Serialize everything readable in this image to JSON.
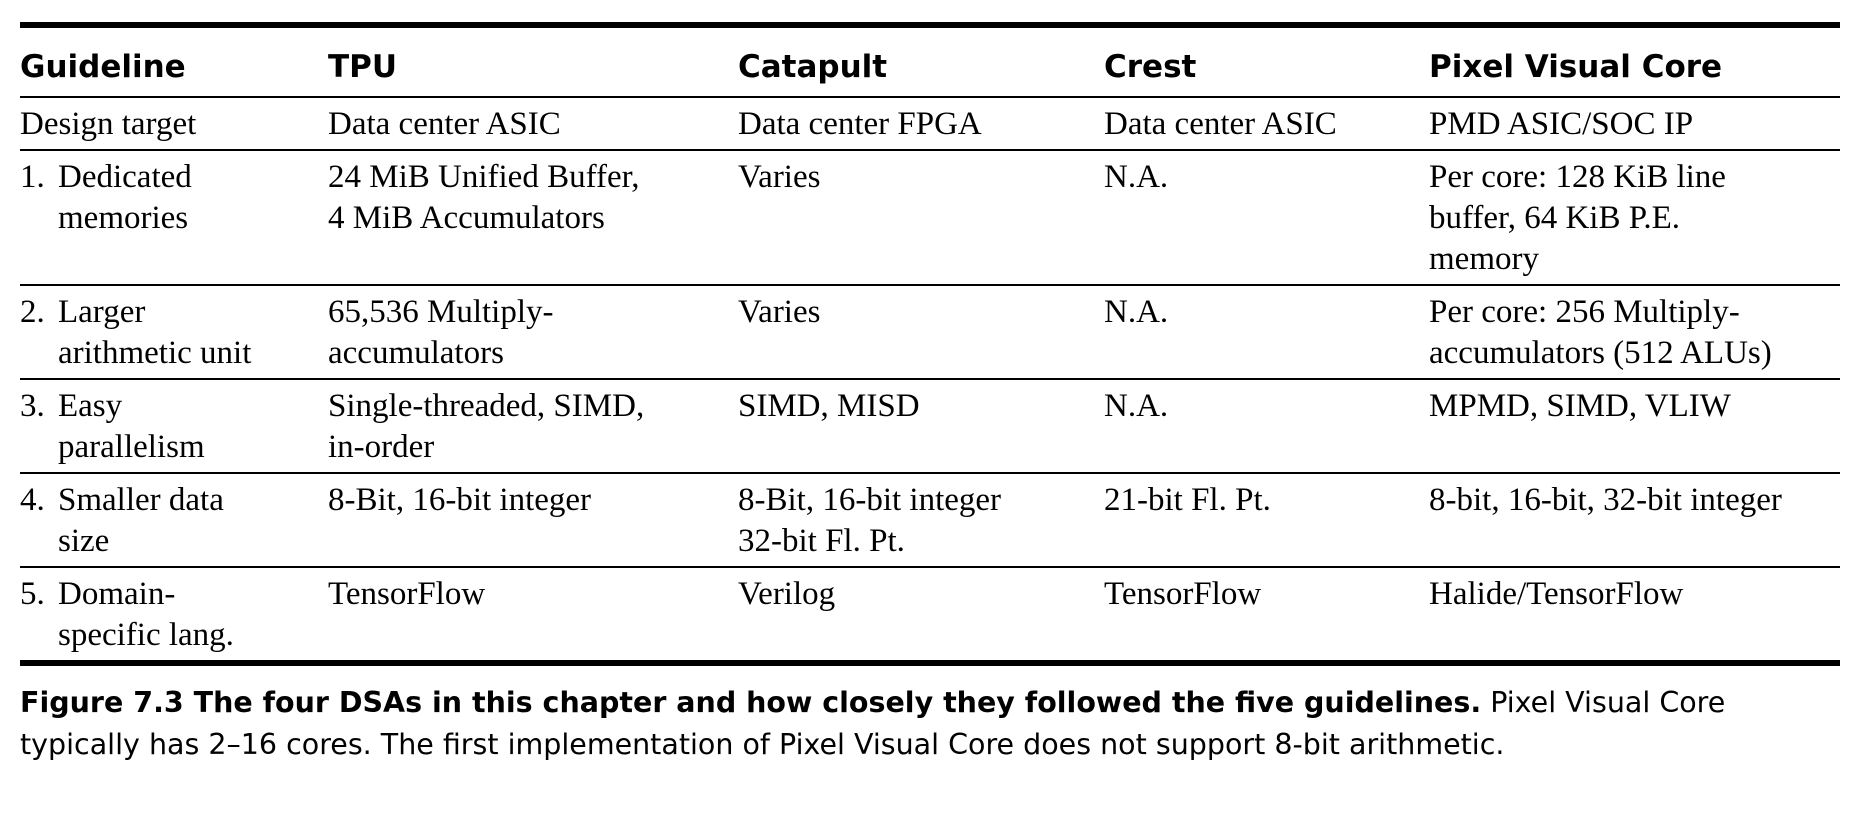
{
  "table": {
    "headers": [
      "Guideline",
      "TPU",
      "Catapult",
      "Crest",
      "Pixel Visual Core"
    ],
    "rows": [
      {
        "num": "",
        "guideline": [
          "Design target"
        ],
        "cells": [
          [
            "Data center ASIC"
          ],
          [
            "Data center FPGA"
          ],
          [
            "Data center ASIC"
          ],
          [
            "PMD ASIC/SOC IP"
          ]
        ]
      },
      {
        "num": "1.",
        "guideline": [
          "Dedicated",
          "memories"
        ],
        "cells": [
          [
            "24 MiB Unified Buffer,",
            "4 MiB  Accumulators"
          ],
          [
            "Varies"
          ],
          [
            "N.A."
          ],
          [
            "Per core: 128 KiB line",
            "buffer, 64 KiB P.E.",
            "memory"
          ]
        ]
      },
      {
        "num": "2.",
        "guideline": [
          "Larger",
          "arithmetic unit"
        ],
        "cells": [
          [
            "65,536 Multiply-",
            "accumulators"
          ],
          [
            "Varies"
          ],
          [
            "N.A."
          ],
          [
            "Per core: 256 Multiply-",
            "accumulators (512 ALUs)"
          ]
        ]
      },
      {
        "num": "3.",
        "guideline": [
          "Easy",
          "parallelism"
        ],
        "cells": [
          [
            "Single-threaded, SIMD,",
            "in-order"
          ],
          [
            "SIMD, MISD"
          ],
          [
            "N.A."
          ],
          [
            "MPMD, SIMD, VLIW"
          ]
        ]
      },
      {
        "num": "4.",
        "guideline": [
          "Smaller data",
          "size"
        ],
        "cells": [
          [
            "8-Bit, 16-bit integer"
          ],
          [
            "8-Bit, 16-bit integer",
            "32-bit Fl. Pt."
          ],
          [
            "21-bit Fl. Pt."
          ],
          [
            "8-bit, 16-bit, 32-bit integer"
          ]
        ]
      },
      {
        "num": "5.",
        "guideline": [
          "Domain-",
          "specific lang."
        ],
        "cells": [
          [
            "TensorFlow"
          ],
          [
            "Verilog"
          ],
          [
            "TensorFlow"
          ],
          [
            "Halide/TensorFlow"
          ]
        ]
      }
    ]
  },
  "caption": {
    "label": "Figure 7.3  The four DSAs in this chapter and how closely they followed the five guidelines.",
    "text": " Pixel Visual Core typically has 2–16 cores. The first implementation of Pixel Visual Core does not support 8-bit arithmetic."
  }
}
